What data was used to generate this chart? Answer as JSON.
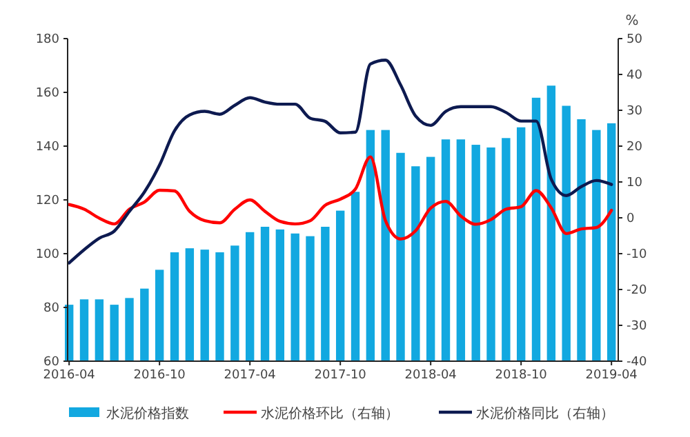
{
  "chart_data": {
    "type": "bar",
    "categories": [
      "2016-04",
      null,
      null,
      null,
      null,
      null,
      "2016-10",
      null,
      null,
      null,
      null,
      null,
      "2017-04",
      null,
      null,
      null,
      null,
      null,
      "2017-10",
      null,
      null,
      null,
      null,
      null,
      "2018-04",
      null,
      null,
      null,
      null,
      null,
      "2018-10",
      null,
      null,
      null,
      null,
      null,
      "2019-04"
    ],
    "y2label": "%",
    "ylim": [
      60,
      180
    ],
    "yticks": [
      60,
      80,
      100,
      120,
      140,
      160,
      180
    ],
    "y2lim": [
      -40,
      50
    ],
    "y2ticks": [
      -40,
      -30,
      -20,
      -10,
      0,
      10,
      20,
      30,
      40,
      50
    ],
    "legend": "bottom",
    "grid": false,
    "series": [
      {
        "name": "水泥价格指数",
        "color": "#12a8e0",
        "values": [
          81,
          83,
          83,
          81,
          83.5,
          87,
          94,
          100.5,
          102,
          101.5,
          100.5,
          103,
          108,
          110,
          109,
          107.5,
          106.5,
          110,
          116,
          123,
          146,
          146,
          137.5,
          132.5,
          136,
          142.5,
          142.5,
          140.5,
          139.5,
          143,
          147,
          158,
          162.5,
          155,
          150,
          146,
          148.5
        ]
      },
      {
        "name": "水泥价格环比（右轴）",
        "type": "line",
        "axis": "y2",
        "color": "#ff0000",
        "values": [
          3.7,
          2.4,
          -0.1,
          -1.7,
          2.4,
          4.4,
          7.7,
          7.5,
          1.8,
          -0.8,
          -1.4,
          2.4,
          5,
          1.8,
          -1,
          -1.7,
          -0.8,
          3.5,
          5.2,
          8,
          17,
          -0.8,
          -5.9,
          -3.6,
          2.7,
          4.6,
          0.5,
          -1.8,
          -0.5,
          2.4,
          3.1,
          7.6,
          2.8,
          -4.4,
          -3.1,
          -2.7,
          2.1
        ]
      },
      {
        "name": "水泥价格同比（右轴）",
        "type": "line",
        "axis": "y2",
        "color": "#0d1a50",
        "values": [
          -12.6,
          -8.9,
          -5.7,
          -3.7,
          1.8,
          7.2,
          14.7,
          24.3,
          28.7,
          29.7,
          28.9,
          31.4,
          33.5,
          32.3,
          31.7,
          31.7,
          27.8,
          26.9,
          23.7,
          23.9,
          42.9,
          44,
          37.1,
          28.4,
          25.8,
          29.7,
          31,
          31,
          31,
          29.4,
          27,
          27,
          10.8,
          6.2,
          8.7,
          10.4,
          9.3
        ]
      }
    ]
  }
}
